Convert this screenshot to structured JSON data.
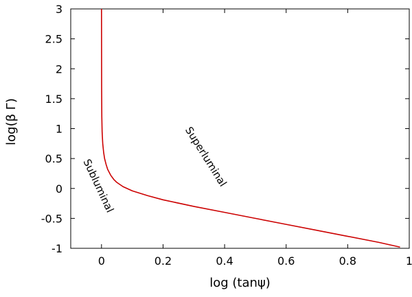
{
  "chart_data": {
    "type": "line",
    "title": "",
    "xlabel": "log (tanψ)",
    "ylabel": "log(β Γ)",
    "xlim": [
      -0.1,
      1.0
    ],
    "ylim": [
      -1,
      3
    ],
    "xticks": [
      0,
      0.2,
      0.4,
      0.6,
      0.8,
      1
    ],
    "xtick_labels": [
      "0",
      "0.2",
      "0.4",
      "0.6",
      "0.8",
      "1"
    ],
    "yticks": [
      -1,
      -0.5,
      0,
      0.5,
      1,
      1.5,
      2,
      2.5,
      3
    ],
    "ytick_labels": [
      "-1",
      "-0.5",
      "0",
      "0.5",
      "1",
      "1.5",
      "2",
      "2.5",
      "3"
    ],
    "grid": false,
    "legend": "none",
    "series": [
      {
        "color": "#cc0000",
        "x": [
          0.0,
          0.0004,
          0.001,
          0.002,
          0.004,
          0.007,
          0.01,
          0.015,
          0.02,
          0.03,
          0.04,
          0.05,
          0.07,
          0.1,
          0.15,
          0.2,
          0.3,
          0.4,
          0.5,
          0.6,
          0.7,
          0.8,
          0.9,
          0.97
        ],
        "y": [
          3.0,
          1.7,
          1.2,
          0.95,
          0.75,
          0.6,
          0.5,
          0.4,
          0.32,
          0.22,
          0.15,
          0.1,
          0.03,
          -0.04,
          -0.12,
          -0.19,
          -0.3,
          -0.4,
          -0.5,
          -0.6,
          -0.7,
          -0.8,
          -0.9,
          -0.98
        ]
      }
    ],
    "annotations": [
      {
        "text": "Subluminal",
        "x": -0.02,
        "y": 0.02,
        "rotation": 65
      },
      {
        "text": "Superluminal",
        "x": 0.33,
        "y": 0.5,
        "rotation": 58
      }
    ]
  }
}
